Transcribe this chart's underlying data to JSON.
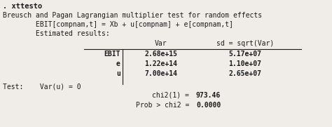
{
  "bg_color": "#f0ede8",
  "text_color": "#1a1a1a",
  "font_family": "monospace",
  "title_bold": ". xttesto",
  "line1": "Breusch and Pagan Lagrangian multiplier test for random effects",
  "line2": "        EBIT[compnam,t] = Xb + u[compnam] + e[compnam,t]",
  "line3": "        Estimated results:",
  "col_header_var": "Var",
  "col_header_sd": "sd = sqrt(Var)",
  "row_labels": [
    "EBIT",
    "e",
    "u"
  ],
  "var_values": [
    "2.68e+15",
    "1.22e+14",
    "7.00e+14"
  ],
  "sd_values": [
    "5.17e+07",
    "1.10e+07",
    "2.65e+07"
  ],
  "test_line": "Test:    Var(u) = 0",
  "chi2_label": "chi2(1) =",
  "chi2_value": "973.46",
  "prob_label": "Prob > chi2 =",
  "prob_value": "0.0000",
  "fontsize": 7.0,
  "title_fontsize": 7.5
}
